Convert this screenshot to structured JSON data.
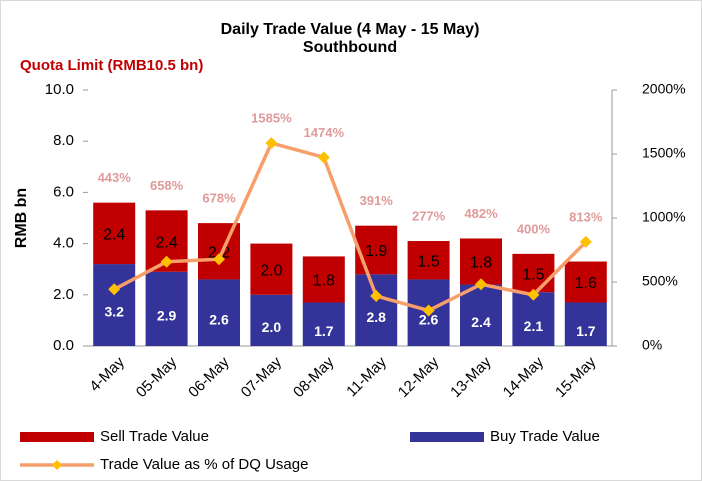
{
  "chart_data": {
    "type": "bar",
    "stacked": true,
    "title": "Daily Trade Value (4 May - 15 May)",
    "subtitle": "Southbound",
    "annotation": "Quota Limit (RMB10.5 bn)",
    "ylabel": "RMB bn",
    "categories": [
      "4-May",
      "05-May",
      "06-May",
      "07-May",
      "08-May",
      "11-May",
      "12-May",
      "13-May",
      "14-May",
      "15-May"
    ],
    "series": [
      {
        "name": "Sell Trade Value",
        "color": "#c00000",
        "values": [
          2.4,
          2.4,
          2.2,
          2.0,
          1.8,
          1.9,
          1.5,
          1.8,
          1.5,
          1.6
        ],
        "value_labels": [
          "2.4",
          "2.4",
          "2.2",
          "2.0",
          "1.8",
          "1.9",
          "1.5",
          "1.8",
          "1.5",
          "1.6"
        ]
      },
      {
        "name": "Buy Trade Value",
        "color": "#333399",
        "values": [
          3.2,
          2.9,
          2.6,
          2.0,
          1.7,
          2.8,
          2.6,
          2.4,
          2.1,
          1.7
        ],
        "value_labels": [
          "3.2",
          "2.9",
          "2.6",
          "2.0",
          "1.7",
          "2.8",
          "2.6",
          "2.4",
          "2.1",
          "1.7"
        ]
      },
      {
        "name": "Trade Value as % of DQ Usage",
        "color": "#f79f6a",
        "marker_color": "#ffc000",
        "axis": "y2",
        "values": [
          443,
          658,
          678,
          1585,
          1474,
          391,
          277,
          482,
          400,
          813
        ],
        "value_labels": [
          "443%",
          "658%",
          "678%",
          "1585%",
          "1474%",
          "391%",
          "277%",
          "482%",
          "400%",
          "813%"
        ]
      }
    ],
    "ylim": [
      0,
      10
    ],
    "yticks": [
      {
        "value": 0,
        "label": "0.0"
      },
      {
        "value": 2,
        "label": "2.0"
      },
      {
        "value": 4,
        "label": "4.0"
      },
      {
        "value": 6,
        "label": "6.0"
      },
      {
        "value": 8,
        "label": "8.0"
      },
      {
        "value": 10,
        "label": "10.0"
      }
    ],
    "y2lim": [
      0,
      2000
    ],
    "y2ticks": [
      {
        "value": 0,
        "label": "0%"
      },
      {
        "value": 500,
        "label": "500%"
      },
      {
        "value": 1000,
        "label": "1000%"
      },
      {
        "value": 1500,
        "label": "1500%"
      },
      {
        "value": 2000,
        "label": "2000%"
      }
    ],
    "grid": false
  }
}
